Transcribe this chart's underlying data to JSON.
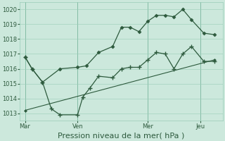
{
  "background_color": "#cce8dc",
  "grid_color": "#99ccb8",
  "line_color": "#2d5a3d",
  "xlabel": "Pression niveau de la mer( hPa )",
  "ylim": [
    1012.5,
    1020.5
  ],
  "yticks": [
    1013,
    1014,
    1015,
    1016,
    1017,
    1018,
    1019,
    1020
  ],
  "xtick_labels": [
    "Mar",
    "Ven",
    "Mer",
    "Jeu"
  ],
  "xtick_positions": [
    0,
    3,
    7,
    10
  ],
  "xlim": [
    -0.3,
    11.3
  ],
  "line1_x": [
    0,
    0.4,
    1.0,
    2.0,
    3.0,
    3.5,
    4.2,
    5.0,
    5.5,
    6.0,
    6.5,
    7.0,
    7.5,
    8.0,
    8.5,
    9.0,
    9.5,
    10.2,
    10.8
  ],
  "line1_y": [
    1016.8,
    1016.0,
    1015.1,
    1016.0,
    1016.1,
    1016.2,
    1017.1,
    1017.5,
    1018.8,
    1018.8,
    1018.5,
    1019.2,
    1019.6,
    1019.6,
    1019.5,
    1020.0,
    1019.3,
    1018.4,
    1018.3
  ],
  "line2_x": [
    0,
    0.4,
    1.0,
    1.5,
    2.0,
    3.0,
    3.3,
    3.7,
    4.2,
    5.0,
    5.5,
    6.0,
    6.5,
    7.0,
    7.5,
    8.0,
    8.5,
    9.0,
    9.5,
    10.2,
    10.8
  ],
  "line2_y": [
    1016.8,
    1016.0,
    1015.1,
    1013.3,
    1012.9,
    1012.9,
    1014.1,
    1014.7,
    1015.5,
    1015.4,
    1016.0,
    1016.1,
    1016.1,
    1016.6,
    1017.1,
    1017.0,
    1016.0,
    1017.0,
    1017.5,
    1016.5,
    1016.5
  ],
  "line3_x": [
    0,
    10.8
  ],
  "line3_y": [
    1013.2,
    1016.6
  ],
  "tick_fontsize": 6,
  "xlabel_fontsize": 8,
  "spine_color": "#99ccb8",
  "vline_color": "#6aaa8e"
}
